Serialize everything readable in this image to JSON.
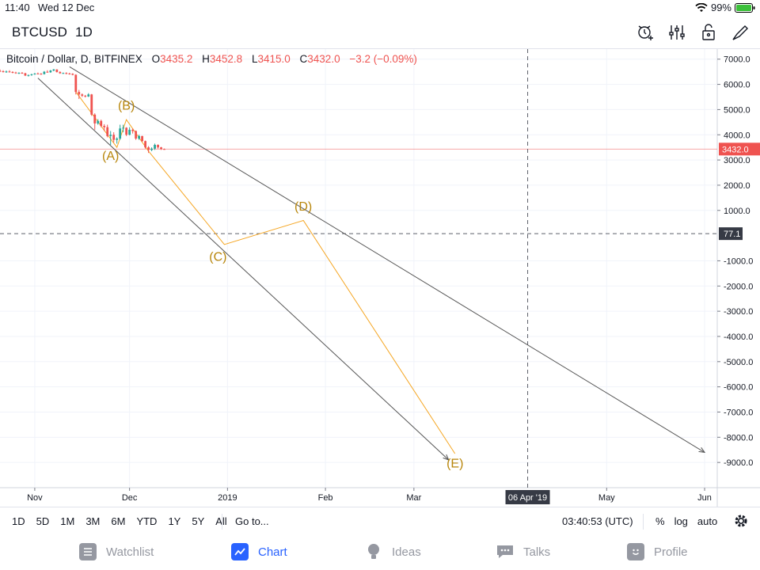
{
  "status_bar": {
    "time": "11:40",
    "date": "Wed 12 Dec",
    "battery": "99%"
  },
  "header": {
    "symbol": "BTCUSD",
    "interval": "1D",
    "tools": [
      "alert-icon",
      "indicators-icon",
      "lock-icon",
      "drawing-icon"
    ]
  },
  "legend": {
    "title": "Bitcoin / Dollar, D, BITFINEX",
    "open_label": "O",
    "open": "3435.2",
    "high_label": "H",
    "high": "3452.8",
    "low_label": "L",
    "low": "3415.0",
    "close_label": "C",
    "close": "3432.0",
    "change": "−3.2 (−0.09%)"
  },
  "chart_data": {
    "type": "line",
    "title": "Bitcoin / Dollar, D, BITFINEX",
    "yticks": [
      "7000.0",
      "6000.0",
      "5000.0",
      "4000.0",
      "3000.0",
      "2000.0",
      "1000.0",
      "-1000.0",
      "-2000.0",
      "-3000.0",
      "-4000.0",
      "-5000.0",
      "-6000.0",
      "-7000.0",
      "-8000.0",
      "-9000.0"
    ],
    "ytick_values": [
      7000,
      6000,
      5000,
      4000,
      3000,
      2000,
      1000,
      -1000,
      -2000,
      -3000,
      -4000,
      -5000,
      -6000,
      -7000,
      -8000,
      -9000
    ],
    "ylim": [
      -10000,
      7400
    ],
    "xticks": [
      "Nov",
      "Dec",
      "2019",
      "Feb",
      "Mar",
      "May",
      "Jun"
    ],
    "xtick_dates": [
      "2018-11-01",
      "2018-12-01",
      "2019-01-01",
      "2019-02-01",
      "2019-03-01",
      "2019-05-01",
      "2019-06-01"
    ],
    "xlim": [
      "2018-10-21",
      "2019-06-05"
    ],
    "price_label": "3432.0",
    "price_value": 3432,
    "crosshair_y_label": "77.1",
    "crosshair_y_value": 77.1,
    "crosshair_x_label": "06 Apr '19",
    "crosshair_x_date": "2019-04-06",
    "candles": [
      {
        "date": "2018-10-21",
        "o": 6540,
        "h": 6590,
        "l": 6490,
        "c": 6520
      },
      {
        "date": "2018-10-22",
        "o": 6520,
        "h": 6560,
        "l": 6470,
        "c": 6500
      },
      {
        "date": "2018-10-23",
        "o": 6500,
        "h": 6550,
        "l": 6460,
        "c": 6510
      },
      {
        "date": "2018-10-24",
        "o": 6510,
        "h": 6560,
        "l": 6470,
        "c": 6490
      },
      {
        "date": "2018-10-25",
        "o": 6490,
        "h": 6520,
        "l": 6440,
        "c": 6470
      },
      {
        "date": "2018-10-26",
        "o": 6470,
        "h": 6500,
        "l": 6420,
        "c": 6450
      },
      {
        "date": "2018-10-27",
        "o": 6450,
        "h": 6480,
        "l": 6410,
        "c": 6460
      },
      {
        "date": "2018-10-28",
        "o": 6460,
        "h": 6490,
        "l": 6420,
        "c": 6440
      },
      {
        "date": "2018-10-29",
        "o": 6440,
        "h": 6460,
        "l": 6330,
        "c": 6350
      },
      {
        "date": "2018-10-30",
        "o": 6350,
        "h": 6390,
        "l": 6310,
        "c": 6370
      },
      {
        "date": "2018-10-31",
        "o": 6370,
        "h": 6420,
        "l": 6340,
        "c": 6400
      },
      {
        "date": "2018-11-01",
        "o": 6400,
        "h": 6450,
        "l": 6380,
        "c": 6430
      },
      {
        "date": "2018-11-02",
        "o": 6430,
        "h": 6470,
        "l": 6400,
        "c": 6420
      },
      {
        "date": "2018-11-03",
        "o": 6420,
        "h": 6450,
        "l": 6380,
        "c": 6410
      },
      {
        "date": "2018-11-04",
        "o": 6410,
        "h": 6530,
        "l": 6390,
        "c": 6500
      },
      {
        "date": "2018-11-05",
        "o": 6500,
        "h": 6560,
        "l": 6460,
        "c": 6480
      },
      {
        "date": "2018-11-06",
        "o": 6480,
        "h": 6570,
        "l": 6460,
        "c": 6550
      },
      {
        "date": "2018-11-07",
        "o": 6550,
        "h": 6610,
        "l": 6520,
        "c": 6590
      },
      {
        "date": "2018-11-08",
        "o": 6590,
        "h": 6600,
        "l": 6470,
        "c": 6490
      },
      {
        "date": "2018-11-09",
        "o": 6490,
        "h": 6520,
        "l": 6420,
        "c": 6440
      },
      {
        "date": "2018-11-10",
        "o": 6440,
        "h": 6470,
        "l": 6420,
        "c": 6450
      },
      {
        "date": "2018-11-11",
        "o": 6450,
        "h": 6480,
        "l": 6400,
        "c": 6430
      },
      {
        "date": "2018-11-12",
        "o": 6430,
        "h": 6460,
        "l": 6390,
        "c": 6420
      },
      {
        "date": "2018-11-13",
        "o": 6420,
        "h": 6440,
        "l": 6360,
        "c": 6380
      },
      {
        "date": "2018-11-14",
        "o": 6380,
        "h": 6400,
        "l": 5600,
        "c": 5700
      },
      {
        "date": "2018-11-15",
        "o": 5700,
        "h": 5780,
        "l": 5420,
        "c": 5600
      },
      {
        "date": "2018-11-16",
        "o": 5600,
        "h": 5640,
        "l": 5500,
        "c": 5550
      },
      {
        "date": "2018-11-17",
        "o": 5550,
        "h": 5580,
        "l": 5480,
        "c": 5520
      },
      {
        "date": "2018-11-18",
        "o": 5520,
        "h": 5650,
        "l": 5500,
        "c": 5600
      },
      {
        "date": "2018-11-19",
        "o": 5600,
        "h": 5620,
        "l": 4750,
        "c": 4800
      },
      {
        "date": "2018-11-20",
        "o": 4800,
        "h": 4850,
        "l": 4200,
        "c": 4450
      },
      {
        "date": "2018-11-21",
        "o": 4450,
        "h": 4620,
        "l": 4400,
        "c": 4550
      },
      {
        "date": "2018-11-22",
        "o": 4550,
        "h": 4600,
        "l": 4300,
        "c": 4350
      },
      {
        "date": "2018-11-23",
        "o": 4350,
        "h": 4420,
        "l": 4150,
        "c": 4300
      },
      {
        "date": "2018-11-24",
        "o": 4300,
        "h": 4400,
        "l": 3900,
        "c": 3950
      },
      {
        "date": "2018-11-25",
        "o": 3950,
        "h": 4150,
        "l": 3600,
        "c": 4000
      },
      {
        "date": "2018-11-26",
        "o": 4000,
        "h": 4100,
        "l": 3700,
        "c": 3800
      },
      {
        "date": "2018-11-27",
        "o": 3800,
        "h": 3900,
        "l": 3650,
        "c": 3850
      },
      {
        "date": "2018-11-28",
        "o": 3850,
        "h": 4400,
        "l": 3800,
        "c": 4250
      },
      {
        "date": "2018-11-29",
        "o": 4250,
        "h": 4400,
        "l": 4100,
        "c": 4280
      },
      {
        "date": "2018-11-30",
        "o": 4280,
        "h": 4300,
        "l": 3950,
        "c": 4000
      },
      {
        "date": "2018-12-01",
        "o": 4000,
        "h": 4300,
        "l": 3980,
        "c": 4200
      },
      {
        "date": "2018-12-02",
        "o": 4200,
        "h": 4250,
        "l": 4050,
        "c": 4150
      },
      {
        "date": "2018-12-03",
        "o": 4150,
        "h": 4170,
        "l": 3800,
        "c": 3850
      },
      {
        "date": "2018-12-04",
        "o": 3850,
        "h": 4000,
        "l": 3800,
        "c": 3950
      },
      {
        "date": "2018-12-05",
        "o": 3950,
        "h": 3960,
        "l": 3720,
        "c": 3750
      },
      {
        "date": "2018-12-06",
        "o": 3750,
        "h": 3770,
        "l": 3450,
        "c": 3500
      },
      {
        "date": "2018-12-07",
        "o": 3500,
        "h": 3550,
        "l": 3280,
        "c": 3400
      },
      {
        "date": "2018-12-08",
        "o": 3400,
        "h": 3500,
        "l": 3350,
        "c": 3450
      },
      {
        "date": "2018-12-09",
        "o": 3450,
        "h": 3650,
        "l": 3400,
        "c": 3600
      },
      {
        "date": "2018-12-10",
        "o": 3600,
        "h": 3620,
        "l": 3450,
        "c": 3500
      },
      {
        "date": "2018-12-11",
        "o": 3500,
        "h": 3520,
        "l": 3400,
        "c": 3440
      },
      {
        "date": "2018-12-12",
        "o": 3435.2,
        "h": 3452.8,
        "l": 3415.0,
        "c": 3432.0
      }
    ],
    "trendlines": [
      {
        "name": "upper-channel-line",
        "x1": "2018-11-12",
        "y1": 6700,
        "x2": "2019-06-01",
        "y2": -8600
      },
      {
        "name": "lower-channel-line",
        "x1": "2018-11-02",
        "y1": 6250,
        "x2": "2019-03-12",
        "y2": -8900
      }
    ],
    "wave_path": [
      {
        "date": "2018-11-14",
        "value": 5700
      },
      {
        "date": "2018-11-27",
        "value": 3500
      },
      {
        "date": "2018-11-30",
        "value": 4600
      },
      {
        "date": "2018-12-07",
        "value": 3350
      },
      {
        "date": "2018-12-31",
        "value": -350
      },
      {
        "date": "2019-01-25",
        "value": 600
      },
      {
        "date": "2019-03-14",
        "value": -8650
      }
    ],
    "wave_labels": [
      {
        "text": "(A)",
        "date": "2018-11-25",
        "value": 3000
      },
      {
        "text": "(B)",
        "date": "2018-11-30",
        "value": 5000
      },
      {
        "text": "(C)",
        "date": "2018-12-29",
        "value": -1000
      },
      {
        "text": "(D)",
        "date": "2019-01-25",
        "value": 1000
      },
      {
        "text": "(E)",
        "date": "2019-03-14",
        "value": -9200
      }
    ],
    "colors": {
      "up": "#26a69a",
      "down": "#ef5350",
      "trendline": "#555555",
      "wave": "#f5a623",
      "wave_label": "#b8860b",
      "price_line": "#ef5350"
    }
  },
  "bottom_toolbar": {
    "ranges": [
      "1D",
      "5D",
      "1M",
      "3M",
      "6M",
      "YTD",
      "1Y",
      "5Y",
      "All"
    ],
    "goto": "Go to...",
    "clock": "03:40:53 (UTC)",
    "percent": "%",
    "log": "log",
    "auto": "auto"
  },
  "tabs": [
    {
      "label": "Watchlist",
      "icon": "watchlist-icon"
    },
    {
      "label": "Chart",
      "icon": "chart-icon"
    },
    {
      "label": "Ideas",
      "icon": "ideas-icon"
    },
    {
      "label": "Talks",
      "icon": "talks-icon"
    },
    {
      "label": "Profile",
      "icon": "profile-icon"
    }
  ]
}
